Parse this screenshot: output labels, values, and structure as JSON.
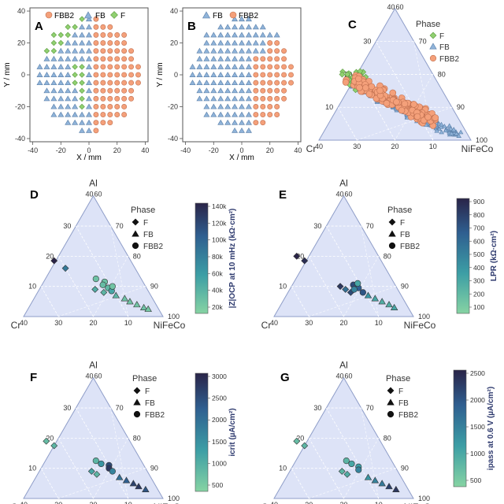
{
  "colors": {
    "F": "#90d070",
    "FB": "#8fb3d9",
    "FBB2": "#f4a07a",
    "axis": "#666666",
    "tri_fill": "#dde3f7",
    "tri_stroke": "#8e9dc8",
    "cmap_low": "#82d0a0",
    "cmap_mid": "#2e7fa0",
    "cmap_high": "#2a2550"
  },
  "chart_data": [
    {
      "panel": "A",
      "type": "scatter",
      "xlabel": "X / mm",
      "ylabel": "Y / mm",
      "xlim": [
        -42,
        42
      ],
      "ylim": [
        -42,
        42
      ],
      "xticks": [
        "-40",
        "-20",
        "0",
        "20",
        "40"
      ],
      "yticks": [
        "40",
        "20",
        "0",
        "-20",
        "-40"
      ],
      "legend": [
        "FBB2",
        "FB",
        "F"
      ],
      "wafer_radius_mm": 35,
      "grid_step_mm": 5
    },
    {
      "panel": "B",
      "type": "scatter",
      "xlabel": "X / mm",
      "ylabel": "Y / mm",
      "xlim": [
        -42,
        42
      ],
      "ylim": [
        -42,
        42
      ],
      "xticks": [
        "-40",
        "-20",
        "0",
        "20",
        "40"
      ],
      "yticks": [
        "40",
        "20",
        "0",
        "-20",
        "-40"
      ],
      "legend": [
        "FB",
        "FBB2"
      ],
      "wafer_radius_mm": 35,
      "grid_step_mm": 5
    },
    {
      "panel": "C",
      "type": "scatter",
      "axes": {
        "top": "Al",
        "left": "Cr",
        "right": "NiFeCo"
      },
      "top_ticks": [
        "40",
        "60"
      ],
      "left_ticks": [
        "40",
        "30",
        "20",
        "10"
      ],
      "right_ticks": [
        "70",
        "80",
        "90",
        "100"
      ],
      "inner_ticks": [
        "20",
        "10",
        "0"
      ],
      "legend_title": "Phase",
      "legend": [
        "F",
        "FB",
        "FBB2"
      ]
    },
    {
      "panel": "D",
      "type": "scatter",
      "axes": {
        "top": "Al",
        "left": "Cr",
        "right": "NiFeCo"
      },
      "top_ticks": [
        "40",
        "60"
      ],
      "left_ticks": [
        "40",
        "30",
        "20",
        "10"
      ],
      "right_ticks": [
        "70",
        "80",
        "90",
        "100"
      ],
      "inner_ticks": [
        "20",
        "10",
        "0"
      ],
      "legend_title": "Phase",
      "legend": [
        "F",
        "FB",
        "FBB2"
      ],
      "colorbar_label": "|Z|OCP at 10 mHz (kΩ·cm²)",
      "colorbar_ticks": [
        "140k",
        "120k",
        "100k",
        "80k",
        "60k",
        "40k",
        "20k"
      ],
      "points": [
        {
          "phase": "F",
          "al": 18.5,
          "cr": 22,
          "v": 1.0
        },
        {
          "phase": "F",
          "al": 16,
          "cr": 20,
          "v": 0.55
        },
        {
          "phase": "F",
          "al": 9,
          "cr": 15,
          "v": 0.25
        },
        {
          "phase": "F",
          "al": 8,
          "cr": 13,
          "v": 0.2
        },
        {
          "phase": "FBB2",
          "al": 12.5,
          "cr": 13,
          "v": 0.12
        },
        {
          "phase": "FBB2",
          "al": 11.5,
          "cr": 11,
          "v": 0.12
        },
        {
          "phase": "FBB2",
          "al": 10.5,
          "cr": 12,
          "v": 0.15
        },
        {
          "phase": "FBB2",
          "al": 9.5,
          "cr": 11,
          "v": 0.18
        },
        {
          "phase": "FBB2",
          "al": 8.5,
          "cr": 10.5,
          "v": 0.3
        },
        {
          "phase": "FBB2",
          "al": 10,
          "cr": 9.5,
          "v": 0.1
        },
        {
          "phase": "FB",
          "al": 7,
          "cr": 10,
          "v": 0.2
        },
        {
          "phase": "FB",
          "al": 6,
          "cr": 8,
          "v": 0.12
        },
        {
          "phase": "FB",
          "al": 5,
          "cr": 7,
          "v": 0.1
        },
        {
          "phase": "FB",
          "al": 4,
          "cr": 5.5,
          "v": 0.1
        },
        {
          "phase": "FB",
          "al": 3,
          "cr": 4,
          "v": 0.12
        },
        {
          "phase": "FB",
          "al": 2.5,
          "cr": 3,
          "v": 0.08
        }
      ]
    },
    {
      "panel": "E",
      "type": "scatter",
      "axes": {
        "top": "Al",
        "left": "Cr",
        "right": "NiFeCo"
      },
      "top_ticks": [
        "40",
        "60"
      ],
      "left_ticks": [
        "40",
        "30",
        "20",
        "10"
      ],
      "right_ticks": [
        "70",
        "80",
        "90",
        "100"
      ],
      "inner_ticks": [
        "20",
        "10",
        "0"
      ],
      "legend_title": "Phase",
      "legend": [
        "F",
        "FB",
        "FBB2"
      ],
      "colorbar_label": "LPR (kΩ·cm²)",
      "colorbar_ticks": [
        "900",
        "800",
        "700",
        "600",
        "500",
        "400",
        "300",
        "200",
        "100"
      ],
      "points": [
        {
          "phase": "F",
          "al": 20,
          "cr": 23.5,
          "v": 1.0
        },
        {
          "phase": "F",
          "al": 18.5,
          "cr": 22,
          "v": 0.95
        },
        {
          "phase": "F",
          "al": 10,
          "cr": 16,
          "v": 0.9
        },
        {
          "phase": "F",
          "al": 9,
          "cr": 15,
          "v": 0.6
        },
        {
          "phase": "F",
          "al": 8,
          "cr": 14,
          "v": 0.8
        },
        {
          "phase": "FBB2",
          "al": 10.5,
          "cr": 12,
          "v": 0.8
        },
        {
          "phase": "FBB2",
          "al": 9.5,
          "cr": 11,
          "v": 0.7
        },
        {
          "phase": "FBB2",
          "al": 9,
          "cr": 12.5,
          "v": 0.5
        },
        {
          "phase": "FBB2",
          "al": 8,
          "cr": 10.5,
          "v": 0.75
        },
        {
          "phase": "FBB2",
          "al": 11,
          "cr": 10.5,
          "v": 0.3
        },
        {
          "phase": "FB",
          "al": 7,
          "cr": 9.5,
          "v": 0.4
        },
        {
          "phase": "FB",
          "al": 6,
          "cr": 8,
          "v": 0.3
        },
        {
          "phase": "FB",
          "al": 5,
          "cr": 6.5,
          "v": 0.25
        },
        {
          "phase": "FB",
          "al": 4,
          "cr": 5,
          "v": 0.25
        },
        {
          "phase": "FB",
          "al": 3,
          "cr": 4,
          "v": 0.3
        }
      ]
    },
    {
      "panel": "F",
      "type": "scatter",
      "axes": {
        "top": "Al",
        "left": "Cr",
        "right": "NiFeCo"
      },
      "top_ticks": [
        "40",
        "60"
      ],
      "left_ticks": [
        "40",
        "30",
        "20",
        "10"
      ],
      "right_ticks": [
        "70",
        "80",
        "90",
        "100"
      ],
      "inner_ticks": [
        "20",
        "10",
        "0"
      ],
      "legend_title": "Phase",
      "legend": [
        "F",
        "FB",
        "FBB2"
      ],
      "colorbar_label": "icrit (µA/cm²)",
      "colorbar_ticks": [
        "3000",
        "2500",
        "2000",
        "1500",
        "1000",
        "500"
      ],
      "points": [
        {
          "phase": "F",
          "al": 19,
          "cr": 24,
          "v": 0.15
        },
        {
          "phase": "F",
          "al": 17.5,
          "cr": 22.5,
          "v": 0.2
        },
        {
          "phase": "F",
          "al": 9,
          "cr": 16,
          "v": 0.3
        },
        {
          "phase": "F",
          "al": 8,
          "cr": 15,
          "v": 0.2
        },
        {
          "phase": "FBB2",
          "al": 12.5,
          "cr": 13,
          "v": 0.2
        },
        {
          "phase": "FBB2",
          "al": 11.5,
          "cr": 12,
          "v": 0.4
        },
        {
          "phase": "FBB2",
          "al": 11,
          "cr": 10,
          "v": 0.8
        },
        {
          "phase": "FBB2",
          "al": 10,
          "cr": 10.5,
          "v": 0.9
        },
        {
          "phase": "FBB2",
          "al": 9,
          "cr": 10,
          "v": 0.5
        },
        {
          "phase": "FB",
          "al": 7,
          "cr": 9,
          "v": 0.6
        },
        {
          "phase": "FB",
          "al": 6,
          "cr": 7.5,
          "v": 0.7
        },
        {
          "phase": "FB",
          "al": 5,
          "cr": 6,
          "v": 0.85
        },
        {
          "phase": "FB",
          "al": 4,
          "cr": 5,
          "v": 0.9
        },
        {
          "phase": "FB",
          "al": 3,
          "cr": 3.5,
          "v": 0.75
        }
      ]
    },
    {
      "panel": "G",
      "type": "scatter",
      "axes": {
        "top": "Al",
        "left": "Cr",
        "right": "NiFeCo"
      },
      "top_ticks": [
        "40",
        "60"
      ],
      "left_ticks": [
        "40",
        "30",
        "20",
        "10"
      ],
      "right_ticks": [
        "70",
        "80",
        "90",
        "100"
      ],
      "inner_ticks": [
        "20",
        "10",
        "0"
      ],
      "legend_title": "Phase",
      "legend": [
        "F",
        "FB",
        "FBB2"
      ],
      "colorbar_label": "ipass at 0.6 V (µA/cm²)",
      "colorbar_ticks": [
        "2500",
        "2000",
        "1500",
        "1000",
        "500"
      ],
      "points": [
        {
          "phase": "F",
          "al": 19,
          "cr": 24,
          "v": 0.15
        },
        {
          "phase": "F",
          "al": 17.5,
          "cr": 22.5,
          "v": 0.2
        },
        {
          "phase": "F",
          "al": 9,
          "cr": 16,
          "v": 0.2
        },
        {
          "phase": "F",
          "al": 8,
          "cr": 15,
          "v": 0.25
        },
        {
          "phase": "FBB2",
          "al": 12.5,
          "cr": 13,
          "v": 0.2
        },
        {
          "phase": "FBB2",
          "al": 11.5,
          "cr": 12,
          "v": 0.3
        },
        {
          "phase": "FBB2",
          "al": 10.5,
          "cr": 10.5,
          "v": 0.35
        },
        {
          "phase": "FBB2",
          "al": 9.5,
          "cr": 11,
          "v": 0.5
        },
        {
          "phase": "FB",
          "al": 7,
          "cr": 9.5,
          "v": 0.4
        },
        {
          "phase": "FB",
          "al": 6,
          "cr": 8,
          "v": 0.5
        },
        {
          "phase": "FB",
          "al": 5,
          "cr": 6.5,
          "v": 0.55
        },
        {
          "phase": "FB",
          "al": 4,
          "cr": 5,
          "v": 0.85
        },
        {
          "phase": "FB",
          "al": 3,
          "cr": 3.5,
          "v": 0.9
        }
      ]
    }
  ]
}
